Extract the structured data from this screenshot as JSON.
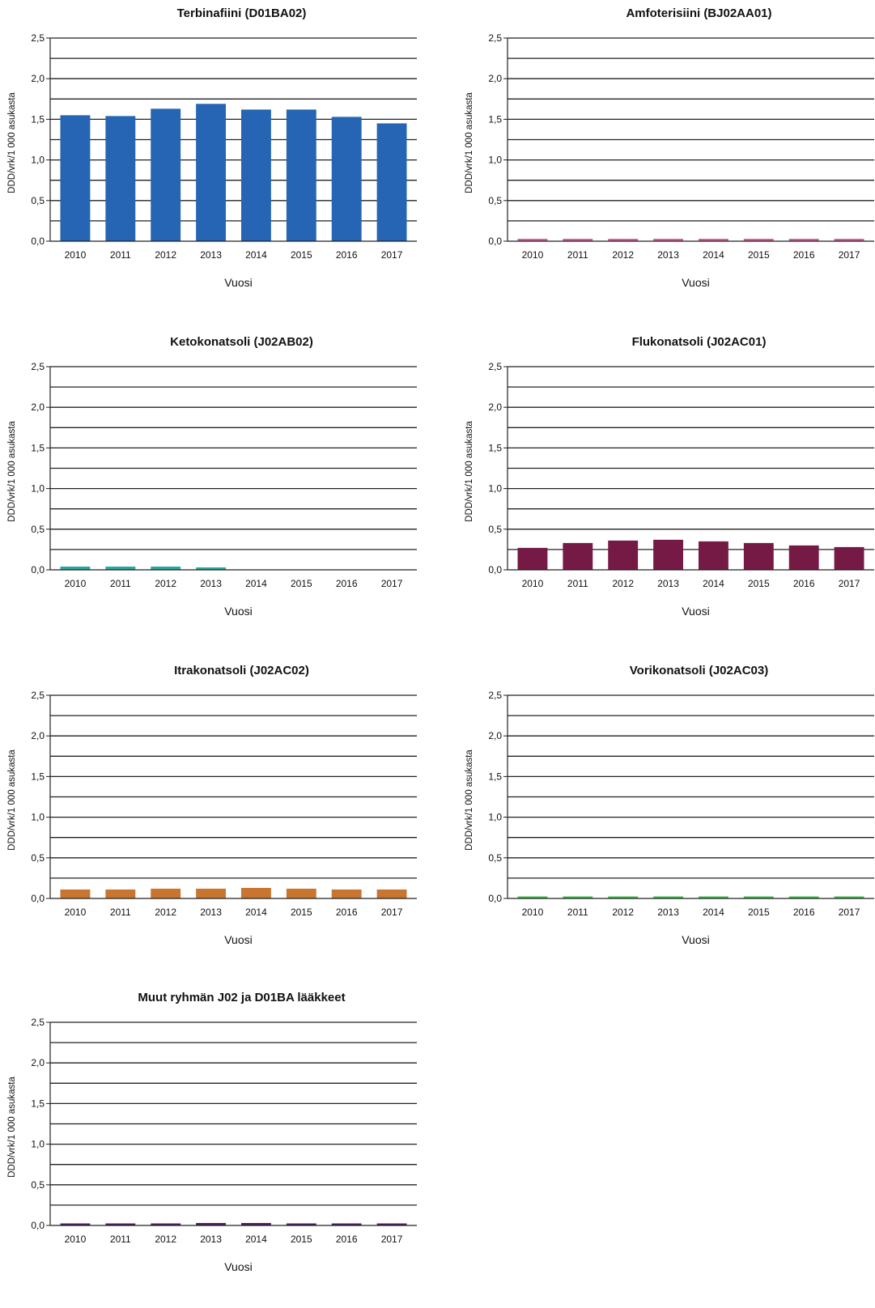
{
  "chart_data": [
    {
      "type": "bar",
      "title": "Terbinafiini (D01BA02)",
      "xlabel": "Vuosi",
      "ylabel": "DDD/vrk/1 000 asukasta",
      "categories": [
        "2010",
        "2011",
        "2012",
        "2013",
        "2014",
        "2015",
        "2016",
        "2017"
      ],
      "values": [
        1.55,
        1.54,
        1.63,
        1.69,
        1.62,
        1.62,
        1.53,
        1.45
      ],
      "ylim": [
        0,
        2.5
      ],
      "yticks": [
        "0,0",
        "0,5",
        "1,0",
        "1,5",
        "2,0",
        "2,5"
      ],
      "grid": true,
      "color": "#2565b3"
    },
    {
      "type": "bar",
      "title": "Amfoterisiini  (BJ02AA01)",
      "xlabel": "Vuosi",
      "ylabel": "DDD/vrk/1 000 asukasta",
      "categories": [
        "2010",
        "2011",
        "2012",
        "2013",
        "2014",
        "2015",
        "2016",
        "2017"
      ],
      "values": [
        0.03,
        0.03,
        0.03,
        0.03,
        0.03,
        0.03,
        0.03,
        0.03
      ],
      "ylim": [
        0,
        2.5
      ],
      "yticks": [
        "0,0",
        "0,5",
        "1,0",
        "1,5",
        "2,0",
        "2,5"
      ],
      "grid": true,
      "color": "#d6609a"
    },
    {
      "type": "bar",
      "title": "Ketokonatsoli (J02AB02)",
      "xlabel": "Vuosi",
      "ylabel": "DDD/vrk/1 000 asukasta",
      "categories": [
        "2010",
        "2011",
        "2012",
        "2013",
        "2014",
        "2015",
        "2016",
        "2017"
      ],
      "values": [
        0.04,
        0.04,
        0.04,
        0.03,
        0,
        0,
        0,
        0
      ],
      "ylim": [
        0,
        2.5
      ],
      "yticks": [
        "0,0",
        "0,5",
        "1,0",
        "1,5",
        "2,0",
        "2,5"
      ],
      "grid": true,
      "color": "#2aa8a0"
    },
    {
      "type": "bar",
      "title": "Flukonatsoli (J02AC01)",
      "xlabel": "Vuosi",
      "ylabel": "DDD/vrk/1 000 asukasta",
      "categories": [
        "2010",
        "2011",
        "2012",
        "2013",
        "2014",
        "2015",
        "2016",
        "2017"
      ],
      "values": [
        0.27,
        0.33,
        0.36,
        0.37,
        0.35,
        0.33,
        0.3,
        0.28
      ],
      "ylim": [
        0,
        2.5
      ],
      "yticks": [
        "0,0",
        "0,5",
        "1,0",
        "1,5",
        "2,0",
        "2,5"
      ],
      "grid": true,
      "color": "#751a45"
    },
    {
      "type": "bar",
      "title": "Itrakonatsoli (J02AC02)",
      "xlabel": "Vuosi",
      "ylabel": "DDD/vrk/1 000 asukasta",
      "categories": [
        "2010",
        "2011",
        "2012",
        "2013",
        "2014",
        "2015",
        "2016",
        "2017"
      ],
      "values": [
        0.11,
        0.11,
        0.12,
        0.12,
        0.13,
        0.12,
        0.11,
        0.11
      ],
      "ylim": [
        0,
        2.5
      ],
      "yticks": [
        "0,0",
        "0,5",
        "1,0",
        "1,5",
        "2,0",
        "2,5"
      ],
      "grid": true,
      "color": "#c87530"
    },
    {
      "type": "bar",
      "title": "Vorikonatsoli (J02AC03)",
      "xlabel": "Vuosi",
      "ylabel": "DDD/vrk/1 000 asukasta",
      "categories": [
        "2010",
        "2011",
        "2012",
        "2013",
        "2014",
        "2015",
        "2016",
        "2017"
      ],
      "values": [
        0.02,
        0.02,
        0.02,
        0.02,
        0.02,
        0.02,
        0.02,
        0.02
      ],
      "ylim": [
        0,
        2.5
      ],
      "yticks": [
        "0,0",
        "0,5",
        "1,0",
        "1,5",
        "2,0",
        "2,5"
      ],
      "grid": true,
      "color": "#3cbf4a"
    },
    {
      "type": "bar",
      "title": "Muut ryhmän J02 ja D01BA lääkkeet",
      "xlabel": "Vuosi",
      "ylabel": "DDD/vrk/1 000 asukasta",
      "categories": [
        "2010",
        "2011",
        "2012",
        "2013",
        "2014",
        "2015",
        "2016",
        "2017"
      ],
      "values": [
        0.02,
        0.02,
        0.02,
        0.03,
        0.03,
        0.02,
        0.02,
        0.02
      ],
      "ylim": [
        0,
        2.5
      ],
      "yticks": [
        "0,0",
        "0,5",
        "1,0",
        "1,5",
        "2,0",
        "2,5"
      ],
      "grid": true,
      "color": "#4a1f63"
    }
  ]
}
